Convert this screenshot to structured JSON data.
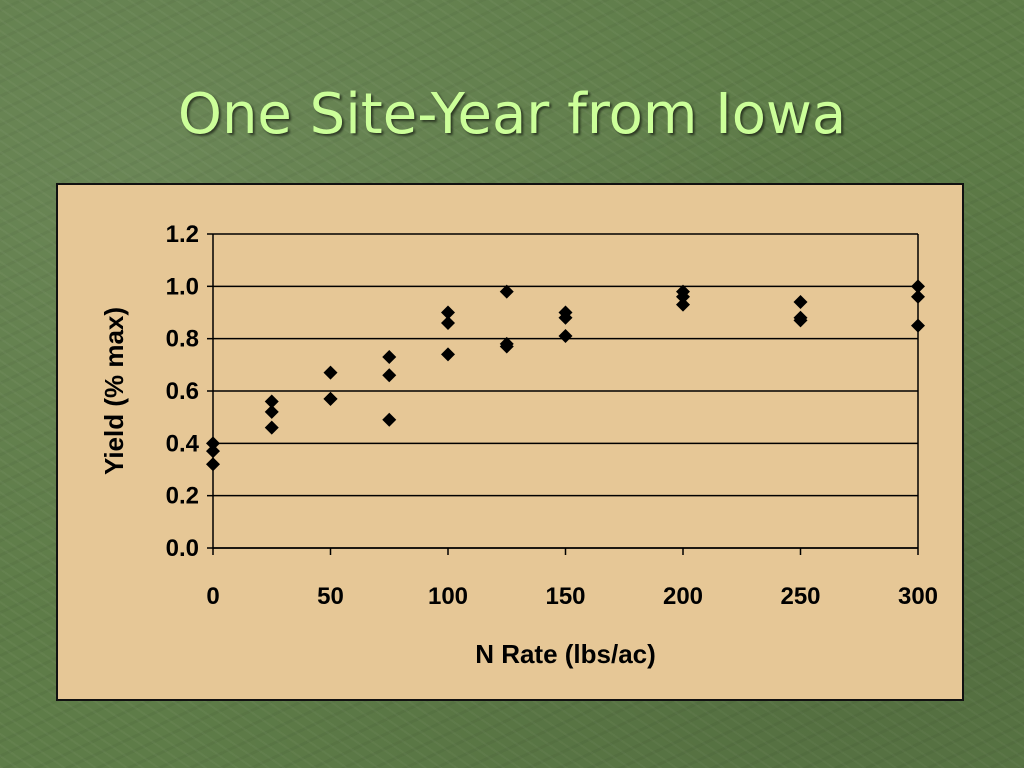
{
  "slide": {
    "title": "One Site-Year from Iowa"
  },
  "chart_data": {
    "type": "scatter",
    "title": "",
    "xlabel": "N Rate (lbs/ac)",
    "ylabel": "Yield (% max)",
    "xlim": [
      0,
      300
    ],
    "ylim": [
      0.0,
      1.2
    ],
    "x_ticks": [
      "0",
      "50",
      "100",
      "150",
      "200",
      "250",
      "300"
    ],
    "y_ticks": [
      "0.0",
      "0.2",
      "0.4",
      "0.6",
      "0.8",
      "1.0",
      "1.2"
    ],
    "grid": "horizontal",
    "legend": "none",
    "marker": "diamond",
    "marker_color": "#000000",
    "points": [
      {
        "x": 0,
        "y": 0.4
      },
      {
        "x": 0,
        "y": 0.37
      },
      {
        "x": 0,
        "y": 0.32
      },
      {
        "x": 25,
        "y": 0.56
      },
      {
        "x": 25,
        "y": 0.52
      },
      {
        "x": 25,
        "y": 0.46
      },
      {
        "x": 50,
        "y": 0.67
      },
      {
        "x": 50,
        "y": 0.57
      },
      {
        "x": 50,
        "y": 0.57
      },
      {
        "x": 75,
        "y": 0.73
      },
      {
        "x": 75,
        "y": 0.66
      },
      {
        "x": 75,
        "y": 0.49
      },
      {
        "x": 100,
        "y": 0.9
      },
      {
        "x": 100,
        "y": 0.86
      },
      {
        "x": 100,
        "y": 0.74
      },
      {
        "x": 125,
        "y": 0.98
      },
      {
        "x": 125,
        "y": 0.78
      },
      {
        "x": 125,
        "y": 0.77
      },
      {
        "x": 150,
        "y": 0.9
      },
      {
        "x": 150,
        "y": 0.88
      },
      {
        "x": 150,
        "y": 0.81
      },
      {
        "x": 200,
        "y": 0.98
      },
      {
        "x": 200,
        "y": 0.96
      },
      {
        "x": 200,
        "y": 0.93
      },
      {
        "x": 250,
        "y": 0.94
      },
      {
        "x": 250,
        "y": 0.88
      },
      {
        "x": 250,
        "y": 0.87
      },
      {
        "x": 300,
        "y": 1.0
      },
      {
        "x": 300,
        "y": 0.96
      },
      {
        "x": 300,
        "y": 0.85
      }
    ]
  }
}
